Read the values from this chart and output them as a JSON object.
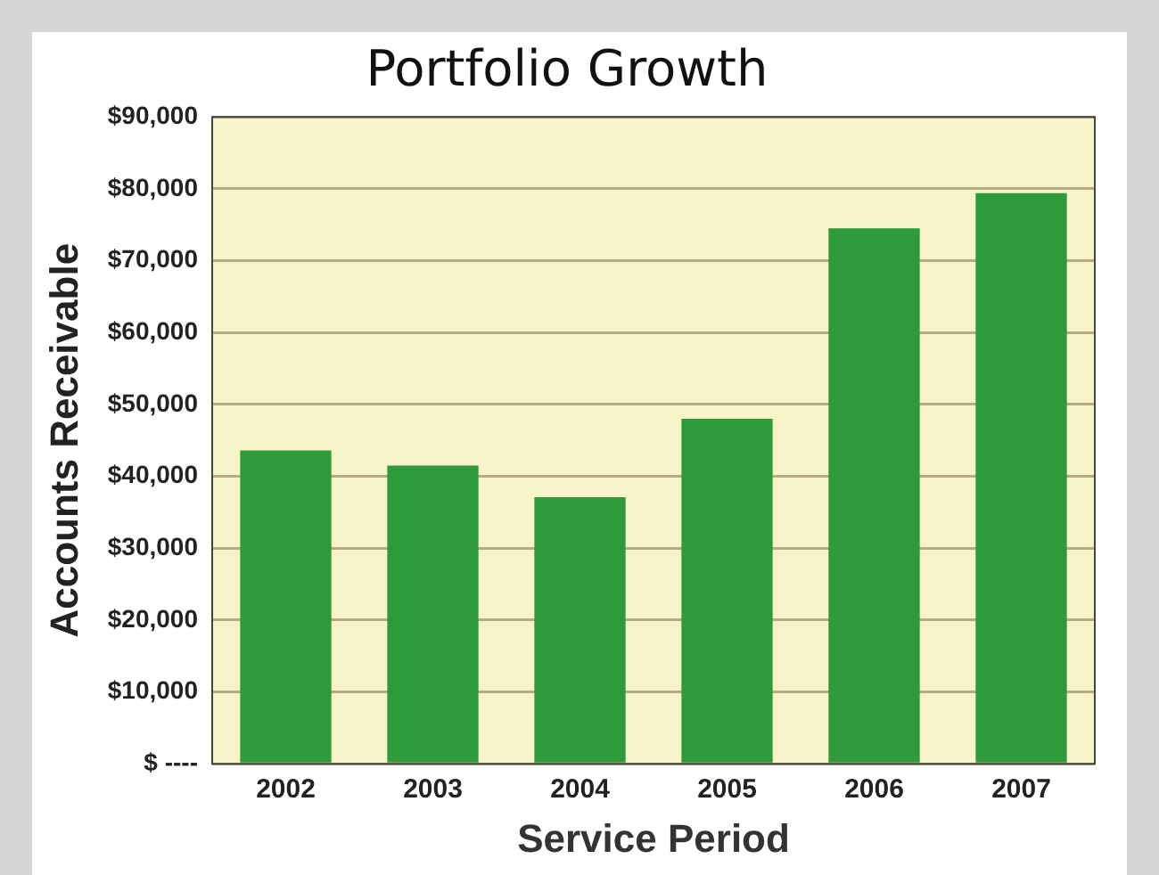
{
  "chart_data": {
    "type": "bar",
    "title": "Portfolio Growth",
    "xlabel": "Service Period",
    "ylabel": "Accounts Receivable",
    "categories": [
      "2002",
      "2003",
      "2004",
      "2005",
      "2006",
      "2007"
    ],
    "values": [
      43600,
      41500,
      37100,
      48000,
      74500,
      79400
    ],
    "color": "#2f9a3a",
    "ylim": [
      0,
      90000
    ],
    "yticks": [
      {
        "value": 0,
        "label": "$ ----"
      },
      {
        "value": 10000,
        "label": "$10,000"
      },
      {
        "value": 20000,
        "label": "$20,000"
      },
      {
        "value": 30000,
        "label": "$30,000"
      },
      {
        "value": 40000,
        "label": "$40,000"
      },
      {
        "value": 50000,
        "label": "$50,000"
      },
      {
        "value": 60000,
        "label": "$60,000"
      },
      {
        "value": 70000,
        "label": "$70,000"
      },
      {
        "value": 80000,
        "label": "$80,000"
      },
      {
        "value": 90000,
        "label": "$90,000"
      }
    ],
    "grid": "y",
    "legend": false
  }
}
